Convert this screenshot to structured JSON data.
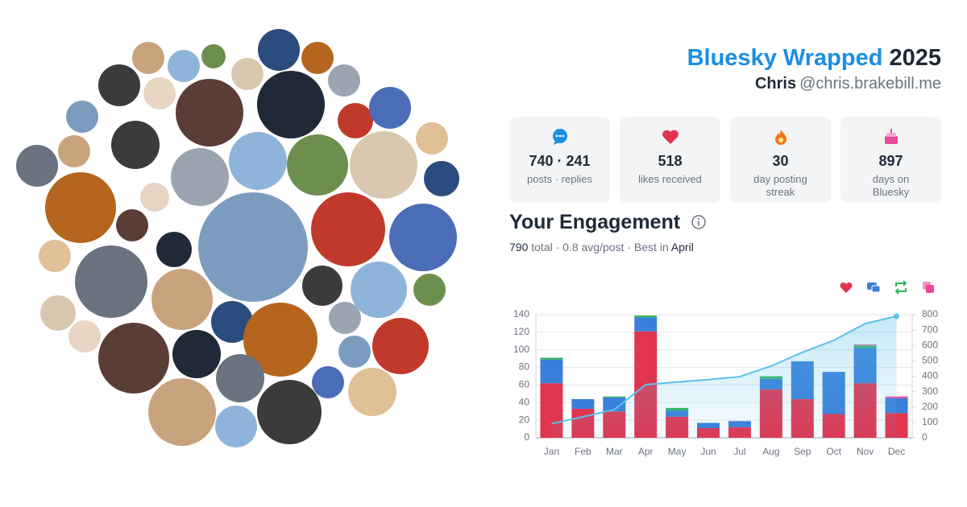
{
  "header": {
    "title": "Bluesky Wrapped",
    "year": "2025",
    "name": "Chris",
    "handle": "@chris.brakebill.me"
  },
  "stats": [
    {
      "value": "740 · 241",
      "label": "posts · replies"
    },
    {
      "value": "518",
      "label": "likes received"
    },
    {
      "value": "30",
      "label": "day posting streak"
    },
    {
      "value": "897",
      "label": "days on Bluesky"
    }
  ],
  "engagement": {
    "title": "Your Engagement",
    "total": "790",
    "detail": "total · 0.8 avg/post · Best in",
    "best_month": "April"
  },
  "chart_data": {
    "type": "bar",
    "categories": [
      "Jan",
      "Feb",
      "Mar",
      "Apr",
      "May",
      "Jun",
      "Jul",
      "Aug",
      "Sep",
      "Oct",
      "Nov",
      "Dec"
    ],
    "series": [
      {
        "color": "#e0354f",
        "values": [
          62,
          33,
          30,
          121,
          24,
          11,
          12,
          55,
          44,
          27,
          62,
          28
        ]
      },
      {
        "color": "#3a7fd9",
        "values": [
          27,
          11,
          16,
          16,
          7,
          6,
          7,
          12,
          43,
          48,
          40,
          17
        ]
      },
      {
        "color": "#2fb65a",
        "values": [
          2,
          0,
          1,
          2,
          3,
          0,
          0,
          3,
          0,
          0,
          3,
          0
        ]
      },
      {
        "color": "#ec4899",
        "values": [
          0,
          0,
          0,
          0,
          0,
          0,
          0,
          0,
          0,
          0,
          1,
          2
        ]
      },
      {
        "type": "line",
        "axis": "y2",
        "color": "#5bc0eb",
        "values": [
          92,
          136,
          183,
          345,
          362,
          378,
          397,
          466,
          555,
          633,
          742,
          790
        ]
      }
    ],
    "ylim": [
      0,
      140
    ],
    "yticks": [
      0,
      20,
      40,
      60,
      80,
      100,
      120,
      140
    ],
    "y2lim": [
      0,
      800
    ],
    "y2ticks": [
      0,
      100,
      200,
      300,
      400,
      500,
      600,
      700,
      800
    ],
    "grid": true
  }
}
